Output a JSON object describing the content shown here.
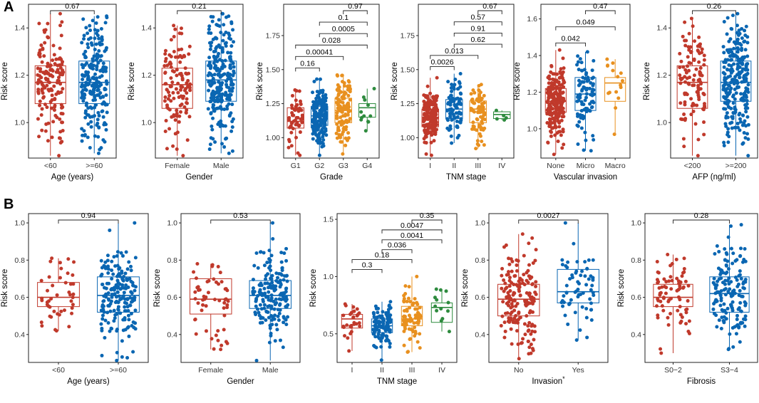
{
  "panel_labels": [
    "A",
    "B"
  ],
  "colors": {
    "red": "#c0392b",
    "blue": "#0a66b2",
    "orange": "#e8901f",
    "green": "#2e8b3e",
    "axis": "#222222",
    "text": "#333333"
  },
  "chart_data": [
    {
      "type": "box",
      "panel": "A",
      "ylabel": "Risk score",
      "xlabel": "Age (years)",
      "ylim": [
        0.85,
        1.5
      ],
      "yticks": [
        "1.0",
        "1.2",
        "1.4"
      ],
      "categories": [
        "<60",
        ">=60"
      ],
      "boxes": [
        {
          "name": "<60",
          "color": "red",
          "n": 150,
          "min": 0.86,
          "q1": 1.08,
          "median": 1.17,
          "q3": 1.24,
          "max": 1.46
        },
        {
          "name": ">=60",
          "color": "blue",
          "n": 220,
          "min": 0.87,
          "q1": 1.08,
          "median": 1.17,
          "q3": 1.26,
          "max": 1.45
        }
      ],
      "comparisons": [
        {
          "from": 0,
          "to": 1,
          "label": "0.67"
        }
      ]
    },
    {
      "type": "box",
      "panel": "A",
      "ylabel": "Risk score",
      "xlabel": "Gender",
      "ylim": [
        0.85,
        1.5
      ],
      "yticks": [
        "1.0",
        "1.2",
        "1.4"
      ],
      "categories": [
        "Female",
        "Male"
      ],
      "boxes": [
        {
          "name": "Female",
          "color": "red",
          "n": 120,
          "min": 0.86,
          "q1": 1.06,
          "median": 1.16,
          "q3": 1.23,
          "max": 1.41
        },
        {
          "name": "Male",
          "color": "blue",
          "n": 250,
          "min": 0.87,
          "q1": 1.09,
          "median": 1.18,
          "q3": 1.26,
          "max": 1.46
        }
      ],
      "comparisons": [
        {
          "from": 0,
          "to": 1,
          "label": "0.21"
        }
      ]
    },
    {
      "type": "box",
      "panel": "A",
      "ylabel": "Risk score",
      "xlabel": "Grade",
      "ylim": [
        0.85,
        1.98
      ],
      "yticks": [
        "1.00",
        "1.25",
        "1.50",
        "1.75"
      ],
      "categories": [
        "G1",
        "G2",
        "G3",
        "G4"
      ],
      "boxes": [
        {
          "name": "G1",
          "color": "red",
          "n": 55,
          "min": 0.87,
          "q1": 1.07,
          "median": 1.12,
          "q3": 1.22,
          "max": 1.35
        },
        {
          "name": "G2",
          "color": "blue",
          "n": 180,
          "min": 0.87,
          "q1": 1.09,
          "median": 1.16,
          "q3": 1.23,
          "max": 1.43
        },
        {
          "name": "G3",
          "color": "orange",
          "n": 120,
          "min": 0.88,
          "q1": 1.11,
          "median": 1.2,
          "q3": 1.29,
          "max": 1.46
        },
        {
          "name": "G4",
          "color": "green",
          "n": 12,
          "min": 1.05,
          "q1": 1.15,
          "median": 1.22,
          "q3": 1.25,
          "max": 1.36
        }
      ],
      "comparisons": [
        {
          "from": 0,
          "to": 1,
          "label": "0.16"
        },
        {
          "from": 0,
          "to": 2,
          "label": "0.00041"
        },
        {
          "from": 0,
          "to": 3,
          "label": "0.028"
        },
        {
          "from": 1,
          "to": 3,
          "label": "0.0005"
        },
        {
          "from": 1,
          "to": 3,
          "label": "0.1"
        },
        {
          "from": 2,
          "to": 3,
          "label": "0.97"
        }
      ]
    },
    {
      "type": "box",
      "panel": "A",
      "ylabel": "Risk score",
      "xlabel": "TNM stage",
      "ylim": [
        0.85,
        1.98
      ],
      "yticks": [
        "1.00",
        "1.25",
        "1.50",
        "1.75"
      ],
      "categories": [
        "I",
        "II",
        "III",
        "IV"
      ],
      "boxes": [
        {
          "name": "I",
          "color": "red",
          "n": 170,
          "min": 0.87,
          "q1": 1.08,
          "median": 1.15,
          "q3": 1.21,
          "max": 1.44
        },
        {
          "name": "II",
          "color": "blue",
          "n": 85,
          "min": 0.96,
          "q1": 1.14,
          "median": 1.21,
          "q3": 1.28,
          "max": 1.47
        },
        {
          "name": "III",
          "color": "orange",
          "n": 80,
          "min": 0.92,
          "q1": 1.11,
          "median": 1.21,
          "q3": 1.27,
          "max": 1.39
        },
        {
          "name": "IV",
          "color": "green",
          "n": 5,
          "min": 1.13,
          "q1": 1.14,
          "median": 1.17,
          "q3": 1.19,
          "max": 1.2
        }
      ],
      "comparisons": [
        {
          "from": 0,
          "to": 1,
          "label": "0.0026"
        },
        {
          "from": 0,
          "to": 2,
          "label": "0.013"
        },
        {
          "from": 1,
          "to": 3,
          "label": "0.62"
        },
        {
          "from": 1,
          "to": 3,
          "label": "0.91"
        },
        {
          "from": 1,
          "to": 3,
          "label": "0.57"
        },
        {
          "from": 2,
          "to": 3,
          "label": "0.67"
        }
      ]
    },
    {
      "type": "box",
      "panel": "A",
      "ylabel": "Risk score",
      "xlabel": "Vascular invasion",
      "ylim": [
        0.84,
        1.68
      ],
      "yticks": [
        "1.0",
        "1.2",
        "1.4",
        "1.6"
      ],
      "categories": [
        "None",
        "Micro",
        "Macro"
      ],
      "boxes": [
        {
          "name": "None",
          "color": "red",
          "n": 220,
          "min": 0.86,
          "q1": 1.09,
          "median": 1.15,
          "q3": 1.22,
          "max": 1.43
        },
        {
          "name": "Micro",
          "color": "blue",
          "n": 90,
          "min": 0.88,
          "q1": 1.1,
          "median": 1.19,
          "q3": 1.28,
          "max": 1.42
        },
        {
          "name": "Macro",
          "color": "orange",
          "n": 16,
          "min": 0.97,
          "q1": 1.15,
          "median": 1.25,
          "q3": 1.28,
          "max": 1.38
        }
      ],
      "comparisons": [
        {
          "from": 0,
          "to": 1,
          "label": "0.042"
        },
        {
          "from": 0,
          "to": 2,
          "label": "0.049"
        },
        {
          "from": 1,
          "to": 2,
          "label": "0.47"
        }
      ]
    },
    {
      "type": "box",
      "panel": "A",
      "ylabel": "Risk score",
      "xlabel": "AFP (ng/ml)",
      "ylim": [
        0.85,
        1.5
      ],
      "yticks": [
        "1.0",
        "1.2",
        "1.4"
      ],
      "categories": [
        "<200",
        ">=200"
      ],
      "boxes": [
        {
          "name": "<200",
          "color": "red",
          "n": 110,
          "min": 0.86,
          "q1": 1.06,
          "median": 1.17,
          "q3": 1.24,
          "max": 1.44
        },
        {
          "name": ">=200",
          "color": "blue",
          "n": 260,
          "min": 0.86,
          "q1": 1.09,
          "median": 1.17,
          "q3": 1.26,
          "max": 1.46
        }
      ],
      "comparisons": [
        {
          "from": 0,
          "to": 1,
          "label": "0.26"
        }
      ]
    },
    {
      "type": "box",
      "panel": "B",
      "ylabel": "Risk score",
      "xlabel": "Age (years)",
      "ylim": [
        0.25,
        1.05
      ],
      "yticks": [
        "0.4",
        "0.6",
        "0.8",
        "1.0"
      ],
      "categories": [
        "<60",
        ">=60"
      ],
      "boxes": [
        {
          "name": "<60",
          "color": "red",
          "n": 45,
          "min": 0.42,
          "q1": 0.55,
          "median": 0.6,
          "q3": 0.68,
          "max": 0.81
        },
        {
          "name": ">=60",
          "color": "blue",
          "n": 190,
          "min": 0.26,
          "q1": 0.52,
          "median": 0.61,
          "q3": 0.71,
          "max": 1.0
        }
      ],
      "comparisons": [
        {
          "from": 0,
          "to": 1,
          "label": "0.94"
        }
      ]
    },
    {
      "type": "box",
      "panel": "B",
      "ylabel": "Risk score",
      "xlabel": "Gender",
      "ylim": [
        0.25,
        1.05
      ],
      "yticks": [
        "0.4",
        "0.6",
        "0.8",
        "1.0"
      ],
      "categories": [
        "Female",
        "Male"
      ],
      "boxes": [
        {
          "name": "Female",
          "color": "red",
          "n": 55,
          "min": 0.32,
          "q1": 0.51,
          "median": 0.59,
          "q3": 0.7,
          "max": 0.78
        },
        {
          "name": "Male",
          "color": "blue",
          "n": 180,
          "min": 0.26,
          "q1": 0.54,
          "median": 0.61,
          "q3": 0.69,
          "max": 1.0
        }
      ],
      "comparisons": [
        {
          "from": 0,
          "to": 1,
          "label": "0.53"
        }
      ]
    },
    {
      "type": "box",
      "panel": "B",
      "ylabel": "Risk score",
      "xlabel": "TNM stage",
      "ylim": [
        0.25,
        1.55
      ],
      "yticks": [
        "0.5",
        "1.0",
        "1.5"
      ],
      "categories": [
        "I",
        "II",
        "III",
        "IV"
      ],
      "boxes": [
        {
          "name": "I",
          "color": "red",
          "n": 30,
          "min": 0.35,
          "q1": 0.55,
          "median": 0.63,
          "q3": 0.67,
          "max": 0.76
        },
        {
          "name": "II",
          "color": "blue",
          "n": 110,
          "min": 0.27,
          "q1": 0.51,
          "median": 0.57,
          "q3": 0.63,
          "max": 0.78
        },
        {
          "name": "III",
          "color": "orange",
          "n": 75,
          "min": 0.34,
          "q1": 0.57,
          "median": 0.63,
          "q3": 0.74,
          "max": 1.0
        },
        {
          "name": "IV",
          "color": "green",
          "n": 13,
          "min": 0.52,
          "q1": 0.6,
          "median": 0.73,
          "q3": 0.77,
          "max": 0.89
        }
      ],
      "comparisons": [
        {
          "from": 0,
          "to": 1,
          "label": "0.3"
        },
        {
          "from": 0,
          "to": 2,
          "label": "0.18"
        },
        {
          "from": 1,
          "to": 2,
          "label": "0.036"
        },
        {
          "from": 1,
          "to": 3,
          "label": "0.0041"
        },
        {
          "from": 1,
          "to": 3,
          "label": "0.0047"
        },
        {
          "from": 2,
          "to": 3,
          "label": "0.35"
        }
      ]
    },
    {
      "type": "box",
      "panel": "B",
      "ylabel": "Risk score",
      "xlabel": "Invasion",
      "xlabel_suffix": "*",
      "ylim": [
        0.25,
        1.05
      ],
      "yticks": [
        "0.4",
        "0.6",
        "0.8",
        "1.0"
      ],
      "categories": [
        "No",
        "Yes"
      ],
      "boxes": [
        {
          "name": "No",
          "color": "red",
          "n": 170,
          "min": 0.27,
          "q1": 0.5,
          "median": 0.59,
          "q3": 0.67,
          "max": 0.94
        },
        {
          "name": "Yes",
          "color": "blue",
          "n": 65,
          "min": 0.37,
          "q1": 0.57,
          "median": 0.63,
          "q3": 0.75,
          "max": 1.0
        }
      ],
      "comparisons": [
        {
          "from": 0,
          "to": 1,
          "label": "0.0027"
        }
      ]
    },
    {
      "type": "box",
      "panel": "B",
      "ylabel": "Risk score",
      "xlabel": "Fibrosis",
      "ylim": [
        0.25,
        1.05
      ],
      "yticks": [
        "0.4",
        "0.6",
        "0.8",
        "1.0"
      ],
      "categories": [
        "S0−2",
        "S3−4"
      ],
      "boxes": [
        {
          "name": "S0−2",
          "color": "red",
          "n": 75,
          "min": 0.3,
          "q1": 0.55,
          "median": 0.6,
          "q3": 0.67,
          "max": 0.83
        },
        {
          "name": "S3−4",
          "color": "blue",
          "n": 150,
          "min": 0.32,
          "q1": 0.52,
          "median": 0.62,
          "q3": 0.71,
          "max": 0.99
        }
      ],
      "comparisons": [
        {
          "from": 0,
          "to": 1,
          "label": "0.28"
        }
      ]
    }
  ]
}
